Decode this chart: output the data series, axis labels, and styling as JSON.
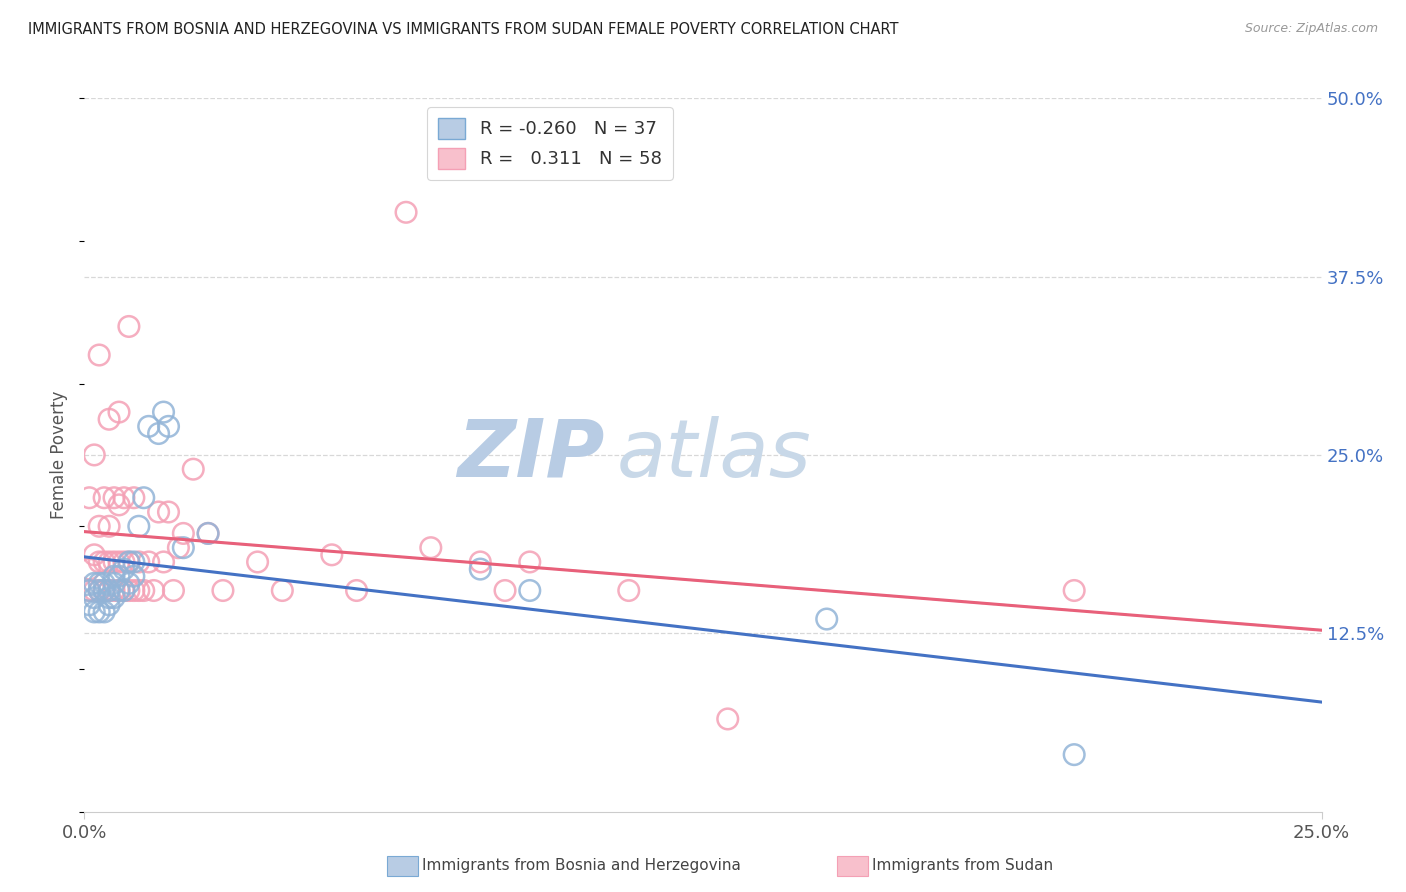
{
  "title": "IMMIGRANTS FROM BOSNIA AND HERZEGOVINA VS IMMIGRANTS FROM SUDAN FEMALE POVERTY CORRELATION CHART",
  "source": "Source: ZipAtlas.com",
  "ylabel": "Female Poverty",
  "right_yticks": [
    "50.0%",
    "37.5%",
    "25.0%",
    "12.5%"
  ],
  "right_ytick_vals": [
    0.5,
    0.375,
    0.25,
    0.125
  ],
  "bosnia_color": "#92b4d7",
  "sudan_color": "#f4a0b5",
  "bosnia_line_color": "#4472c4",
  "sudan_line_color": "#e8607a",
  "sudan_dash_color": "#d4a0a8",
  "xlim": [
    0.0,
    0.25
  ],
  "ylim": [
    0.0,
    0.5
  ],
  "bosnia_scatter_x": [
    0.001,
    0.001,
    0.002,
    0.002,
    0.002,
    0.003,
    0.003,
    0.003,
    0.004,
    0.004,
    0.004,
    0.005,
    0.005,
    0.005,
    0.006,
    0.006,
    0.006,
    0.007,
    0.007,
    0.008,
    0.008,
    0.009,
    0.009,
    0.01,
    0.01,
    0.011,
    0.012,
    0.013,
    0.015,
    0.016,
    0.017,
    0.02,
    0.025,
    0.08,
    0.09,
    0.15,
    0.2
  ],
  "bosnia_scatter_y": [
    0.155,
    0.145,
    0.16,
    0.15,
    0.14,
    0.16,
    0.155,
    0.14,
    0.16,
    0.155,
    0.14,
    0.155,
    0.15,
    0.145,
    0.165,
    0.16,
    0.15,
    0.165,
    0.155,
    0.17,
    0.155,
    0.175,
    0.16,
    0.175,
    0.165,
    0.2,
    0.22,
    0.27,
    0.265,
    0.28,
    0.27,
    0.185,
    0.195,
    0.17,
    0.155,
    0.135,
    0.04
  ],
  "sudan_scatter_x": [
    0.001,
    0.001,
    0.001,
    0.002,
    0.002,
    0.002,
    0.003,
    0.003,
    0.003,
    0.003,
    0.004,
    0.004,
    0.004,
    0.005,
    0.005,
    0.005,
    0.005,
    0.006,
    0.006,
    0.006,
    0.007,
    0.007,
    0.007,
    0.007,
    0.008,
    0.008,
    0.008,
    0.009,
    0.009,
    0.009,
    0.01,
    0.01,
    0.011,
    0.011,
    0.012,
    0.013,
    0.014,
    0.015,
    0.016,
    0.017,
    0.018,
    0.019,
    0.02,
    0.022,
    0.025,
    0.028,
    0.035,
    0.04,
    0.05,
    0.055,
    0.065,
    0.07,
    0.08,
    0.085,
    0.09,
    0.11,
    0.13,
    0.2
  ],
  "sudan_scatter_y": [
    0.155,
    0.17,
    0.22,
    0.155,
    0.18,
    0.25,
    0.155,
    0.175,
    0.2,
    0.32,
    0.155,
    0.175,
    0.22,
    0.155,
    0.175,
    0.2,
    0.275,
    0.155,
    0.175,
    0.22,
    0.155,
    0.175,
    0.215,
    0.28,
    0.155,
    0.175,
    0.22,
    0.155,
    0.175,
    0.34,
    0.155,
    0.22,
    0.155,
    0.175,
    0.155,
    0.175,
    0.155,
    0.21,
    0.175,
    0.21,
    0.155,
    0.185,
    0.195,
    0.24,
    0.195,
    0.155,
    0.175,
    0.155,
    0.18,
    0.155,
    0.42,
    0.185,
    0.175,
    0.155,
    0.175,
    0.155,
    0.065,
    0.155
  ],
  "background_color": "#ffffff",
  "grid_color": "#d8d8d8",
  "text_color_right": "#4472c4",
  "watermark_text1": "ZIP",
  "watermark_text2": "atlas",
  "watermark_color1": "#b8cce4",
  "watermark_color2": "#c8d8e8",
  "legend_label_1": "R = -0.260",
  "legend_label_1b": "N = 37",
  "legend_label_2": "R =   0.311",
  "legend_label_2b": "N = 58",
  "bottom_legend_1": "Immigrants from Bosnia and Herzegovina",
  "bottom_legend_2": "Immigrants from Sudan"
}
